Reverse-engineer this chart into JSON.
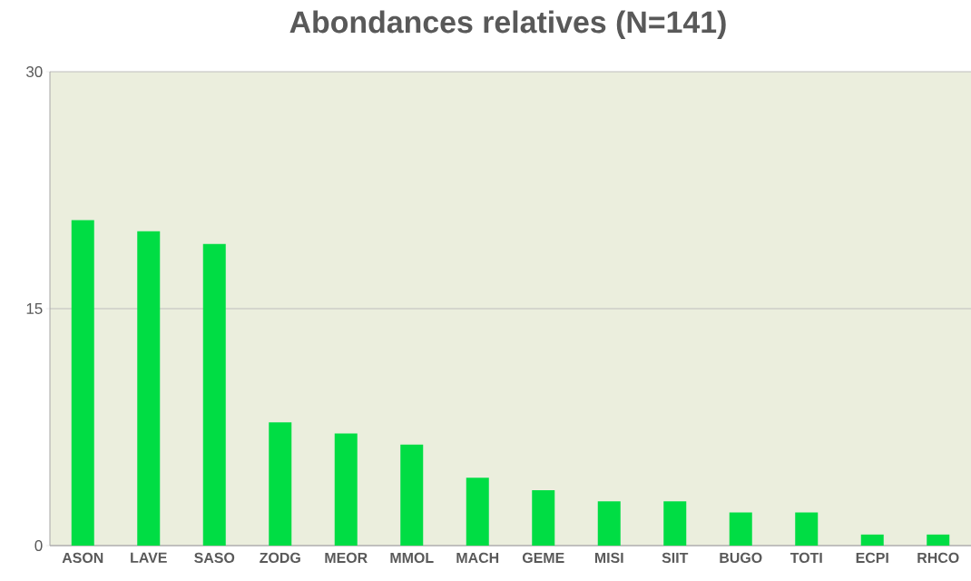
{
  "chart_data": {
    "type": "bar",
    "title": "Abondances relatives (N=141)",
    "categories": [
      "ASON",
      "LAVE",
      "SASO",
      "ZODG",
      "MEOR",
      "MMOL",
      "MACH",
      "GEME",
      "MISI",
      "SIIT",
      "BUGO",
      "TOTI",
      "ECPI",
      "RHCO"
    ],
    "values": [
      20.6,
      19.9,
      19.1,
      7.8,
      7.1,
      6.4,
      4.3,
      3.5,
      2.8,
      2.8,
      2.1,
      2.1,
      0.7,
      0.7
    ],
    "color": "#00dd44",
    "ylim": [
      0,
      30
    ],
    "yticks": [
      0,
      15,
      30
    ],
    "grid": "y"
  }
}
